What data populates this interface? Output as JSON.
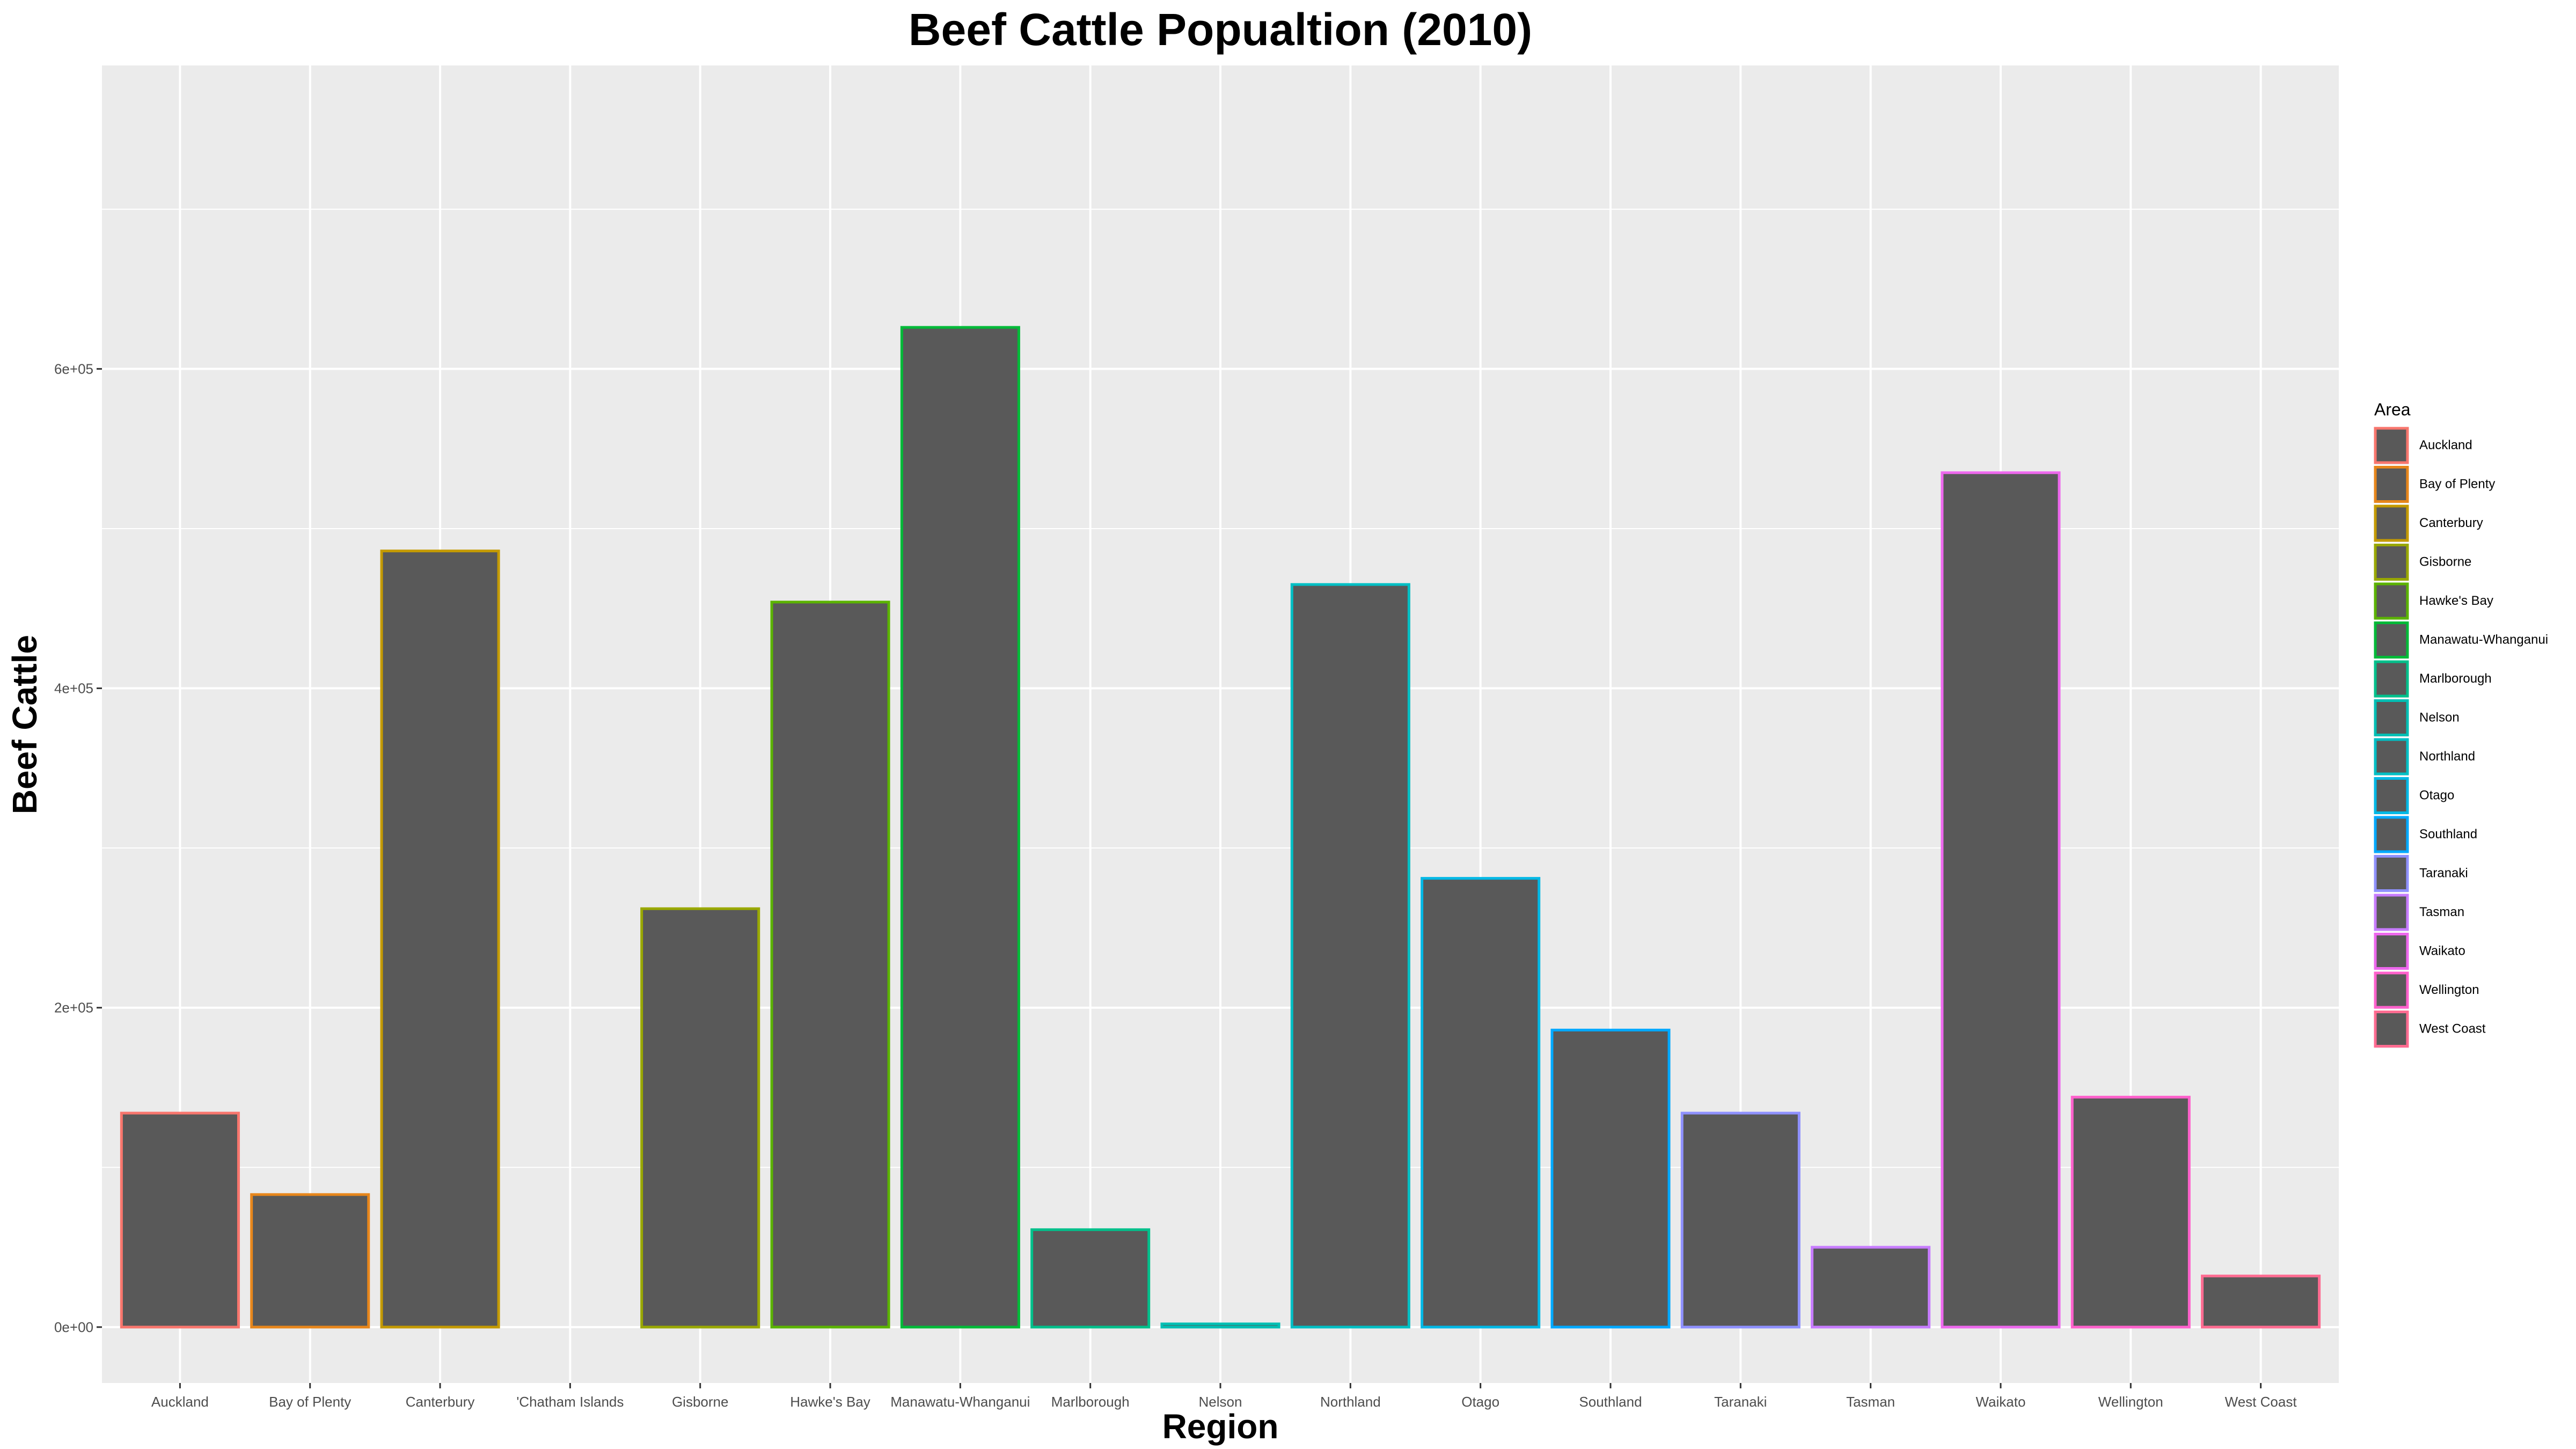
{
  "chart_data": {
    "type": "bar",
    "title": "Beef Cattle Popualtion (2010)",
    "xlabel": "Region",
    "ylabel": "Beef Cattle",
    "categories": [
      "Auckland",
      "Bay of Plenty",
      "Canterbury",
      "'Chatham Islands",
      "Gisborne",
      "Hawke's Bay",
      "Manawatu-Whanganui",
      "Marlborough",
      "Nelson",
      "Northland",
      "Otago",
      "Southland",
      "Taranaki",
      "Tasman",
      "Waikato",
      "Wellington",
      "West Coast"
    ],
    "values": [
      134000,
      83000,
      486000,
      0,
      262000,
      454000,
      626000,
      61000,
      2000,
      465000,
      281000,
      186000,
      134000,
      50000,
      535000,
      144000,
      32000
    ],
    "outline_colors": [
      "#F8766D",
      "#E7861B",
      "#C49A00",
      null,
      "#99A800",
      "#5BB300",
      "#00BA38",
      "#00C08B",
      "#00BFB4",
      "#00BFC4",
      "#00B8E5",
      "#00A9FF",
      "#8F91FF",
      "#C77CFF",
      "#ED68ED",
      "#FF61CC",
      "#FF6C91"
    ],
    "bar_fill": "#595959",
    "panel_bg": "#EBEBEB",
    "grid_color": "#FFFFFF",
    "ylim": [
      -35000,
      790000
    ],
    "yticks": [
      0,
      200000,
      400000,
      600000
    ],
    "ytick_labels": [
      "0e+00",
      "2e+05",
      "4e+05",
      "6e+05"
    ],
    "grid": true,
    "legend": {
      "title": "Area",
      "position": "right",
      "entries": [
        "Auckland",
        "Bay of Plenty",
        "Canterbury",
        "Gisborne",
        "Hawke's Bay",
        "Manawatu-Whanganui",
        "Marlborough",
        "Nelson",
        "Northland",
        "Otago",
        "Southland",
        "Taranaki",
        "Tasman",
        "Waikato",
        "Wellington",
        "West Coast"
      ],
      "colors": [
        "#F8766D",
        "#E7861B",
        "#C49A00",
        "#99A800",
        "#5BB300",
        "#00BA38",
        "#00C08B",
        "#00BFB4",
        "#00BFC4",
        "#00B8E5",
        "#00A9FF",
        "#8F91FF",
        "#C77CFF",
        "#ED68ED",
        "#FF61CC",
        "#FF6C91"
      ]
    }
  }
}
